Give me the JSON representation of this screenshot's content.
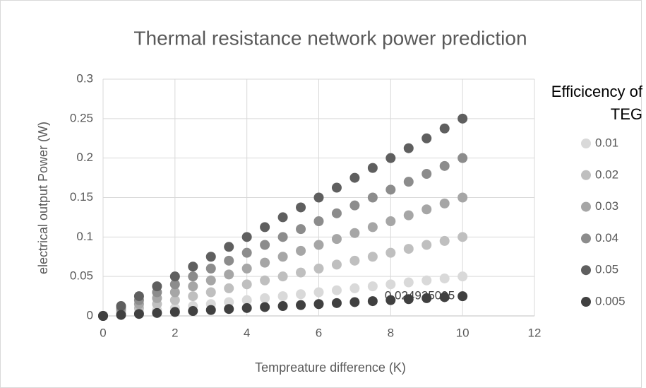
{
  "chart_data": {
    "type": "scatter",
    "title": "Thermal resistance network power prediction",
    "xlabel": "Tempreature difference (K)",
    "ylabel": "electrical output Power (W)",
    "legend_title": "Efficicency of TEG",
    "legend": "right",
    "grid": true,
    "xlim": [
      0,
      12
    ],
    "xticks": [
      0,
      2,
      4,
      6,
      8,
      10,
      12
    ],
    "ylim": [
      0,
      0.3
    ],
    "yticks": [
      0,
      0.05,
      0.1,
      0.15,
      0.2,
      0.25,
      0.3
    ],
    "x": [
      0,
      0.5,
      1,
      1.5,
      2,
      2.5,
      3,
      3.5,
      4,
      4.5,
      5,
      5.5,
      6,
      6.5,
      7,
      7.5,
      8,
      8.5,
      9,
      9.5,
      10
    ],
    "series": [
      {
        "name": "0.01",
        "color": "#d9d9d9",
        "values": [
          0,
          0.0025,
          0.005,
          0.0075,
          0.01,
          0.0125,
          0.015,
          0.0175,
          0.02,
          0.0225,
          0.025,
          0.0275,
          0.03,
          0.0325,
          0.035,
          0.0375,
          0.04,
          0.0425,
          0.045,
          0.0475,
          0.05
        ]
      },
      {
        "name": "0.02",
        "color": "#bfbfbf",
        "values": [
          0,
          0.005,
          0.01,
          0.015,
          0.02,
          0.025,
          0.03,
          0.035,
          0.04,
          0.045,
          0.05,
          0.055,
          0.06,
          0.065,
          0.07,
          0.075,
          0.08,
          0.085,
          0.09,
          0.095,
          0.1
        ]
      },
      {
        "name": "0.03",
        "color": "#a6a6a6",
        "values": [
          0,
          0.0075,
          0.015,
          0.0225,
          0.03,
          0.0375,
          0.045,
          0.0525,
          0.06,
          0.0675,
          0.075,
          0.0825,
          0.09,
          0.0975,
          0.105,
          0.1125,
          0.12,
          0.1275,
          0.135,
          0.1425,
          0.15
        ]
      },
      {
        "name": "0.04",
        "color": "#8c8c8c",
        "values": [
          0,
          0.01,
          0.02,
          0.03,
          0.04,
          0.05,
          0.06,
          0.07,
          0.08,
          0.09,
          0.1,
          0.11,
          0.12,
          0.13,
          0.14,
          0.15,
          0.16,
          0.17,
          0.18,
          0.19,
          0.2
        ]
      },
      {
        "name": "0.05",
        "color": "#5f5f5f",
        "values": [
          0,
          0.0125,
          0.025,
          0.0375,
          0.05,
          0.0625,
          0.075,
          0.0875,
          0.1,
          0.1125,
          0.125,
          0.1375,
          0.15,
          0.1625,
          0.175,
          0.1875,
          0.2,
          0.2125,
          0.225,
          0.2375,
          0.25
        ]
      },
      {
        "name": "0.005",
        "color": "#404040",
        "show_last_label": true,
        "values": [
          0,
          0.00125,
          0.0025,
          0.00375,
          0.005,
          0.00625,
          0.0075,
          0.00875,
          0.01,
          0.01125,
          0.0125,
          0.01375,
          0.015,
          0.01625,
          0.0175,
          0.01875,
          0.02,
          0.02125,
          0.0225,
          0.02375,
          0.024925095
        ]
      }
    ]
  }
}
